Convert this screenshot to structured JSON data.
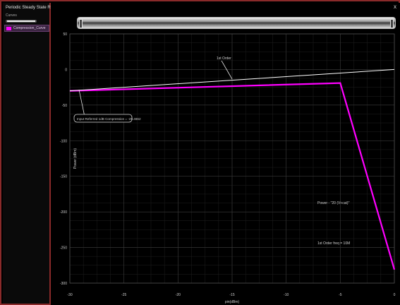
{
  "window": {
    "title": "Periodic Steady State Response",
    "close_glyph": "x"
  },
  "sidebar": {
    "curves_label": "Curves",
    "curve_name": "Compression_Curve",
    "curve_color": "#ff00ff"
  },
  "chart_data": {
    "type": "line",
    "xlabel": "pin(dBm)",
    "ylabel": "Power (dBm)",
    "xlim": [
      -30,
      0
    ],
    "ylim": [
      -300,
      50
    ],
    "x_ticks": [
      "-30",
      "-25",
      "-20",
      "-15",
      "-10",
      "-5",
      "0"
    ],
    "y_ticks": [
      "50",
      "0",
      "-50",
      "-100",
      "-150",
      "-200",
      "-250",
      "-300"
    ],
    "grid": true,
    "series": [
      {
        "name": "Compression_Curve",
        "color": "#ff00ff",
        "x": [
          -30,
          -5,
          0
        ],
        "y": [
          -30,
          -19,
          -281
        ]
      },
      {
        "name": "1st Order",
        "color": "#ffffff",
        "x": [
          -30,
          0
        ],
        "y": [
          -30,
          0
        ]
      }
    ],
    "annotations": {
      "first_order": "1st Order",
      "compression": "Input Referred 1dB Compression = -29.4662",
      "power": "Power - \"20 (V+cat)\"",
      "order_freq": "1st Order freq = 10M"
    }
  }
}
